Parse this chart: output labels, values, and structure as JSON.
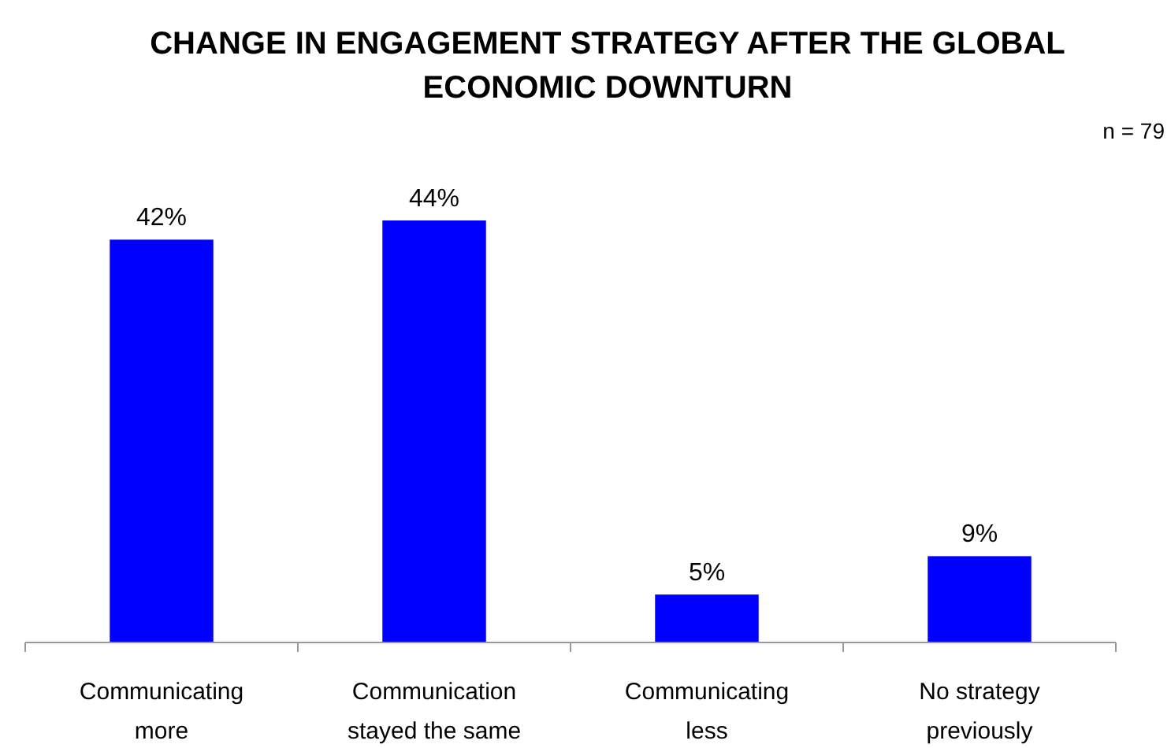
{
  "chart_data": {
    "type": "bar",
    "title": "CHANGE IN ENGAGEMENT STRATEGY AFTER THE GLOBAL ECONOMIC DOWNTURN",
    "subtitle": "n = 79",
    "categories": [
      "Communicating more",
      "Communication stayed the same",
      "Communicating less",
      "No strategy previously"
    ],
    "values": [
      42,
      44,
      5,
      9
    ],
    "color": "#0000ff",
    "value_labels": [
      "42%",
      "44%",
      "5%",
      "9%"
    ],
    "grid": false
  }
}
